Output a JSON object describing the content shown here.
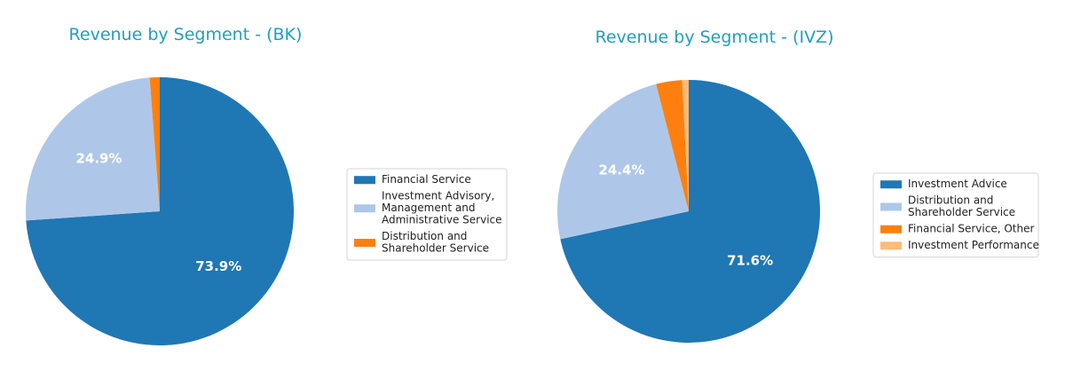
{
  "chart_data": [
    {
      "type": "pie",
      "title": "Revenue by Segment - (BK)",
      "slices": [
        {
          "label": [
            "Financial Service"
          ],
          "value": 73.9,
          "color": "#1f77b4",
          "pct_label": "73.9%"
        },
        {
          "label": [
            "Investment Advisory,",
            "Management and",
            "Administrative Service"
          ],
          "value": 24.9,
          "color": "#aec7e8",
          "pct_label": "24.9%"
        },
        {
          "label": [
            "Distribution and",
            "Shareholder Service"
          ],
          "value": 1.2,
          "color": "#ff7f0e",
          "pct_label": ""
        }
      ],
      "start_angle_deg": 90,
      "direction": "clockwise",
      "legend": "right"
    },
    {
      "type": "pie",
      "title": "Revenue by Segment - (IVZ)",
      "slices": [
        {
          "label": [
            "Investment Advice"
          ],
          "value": 71.6,
          "color": "#1f77b4",
          "pct_label": "71.6%"
        },
        {
          "label": [
            "Distribution and",
            "Shareholder Service"
          ],
          "value": 24.4,
          "color": "#aec7e8",
          "pct_label": "24.4%"
        },
        {
          "label": [
            "Financial Service, Other"
          ],
          "value": 3.2,
          "color": "#ff7f0e",
          "pct_label": ""
        },
        {
          "label": [
            "Investment Performance"
          ],
          "value": 0.8,
          "color": "#ffbb78",
          "pct_label": ""
        }
      ],
      "start_angle_deg": 90,
      "direction": "clockwise",
      "legend": "right"
    }
  ]
}
